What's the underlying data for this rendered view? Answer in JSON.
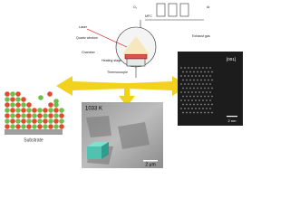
{
  "figure": {
    "substrate_label": "Substrate",
    "apparatus": {
      "labels": [
        "O₂",
        "Ar",
        "MFC",
        "Laser",
        "Quartz window",
        "Chamber",
        "Heating stage",
        "Thermocouple",
        "Exhaust gas"
      ]
    },
    "sem": {
      "temperature": "1033 K",
      "scale": "2 μm"
    },
    "tem": {
      "direction": "[001]",
      "scale": "2 nm"
    }
  }
}
